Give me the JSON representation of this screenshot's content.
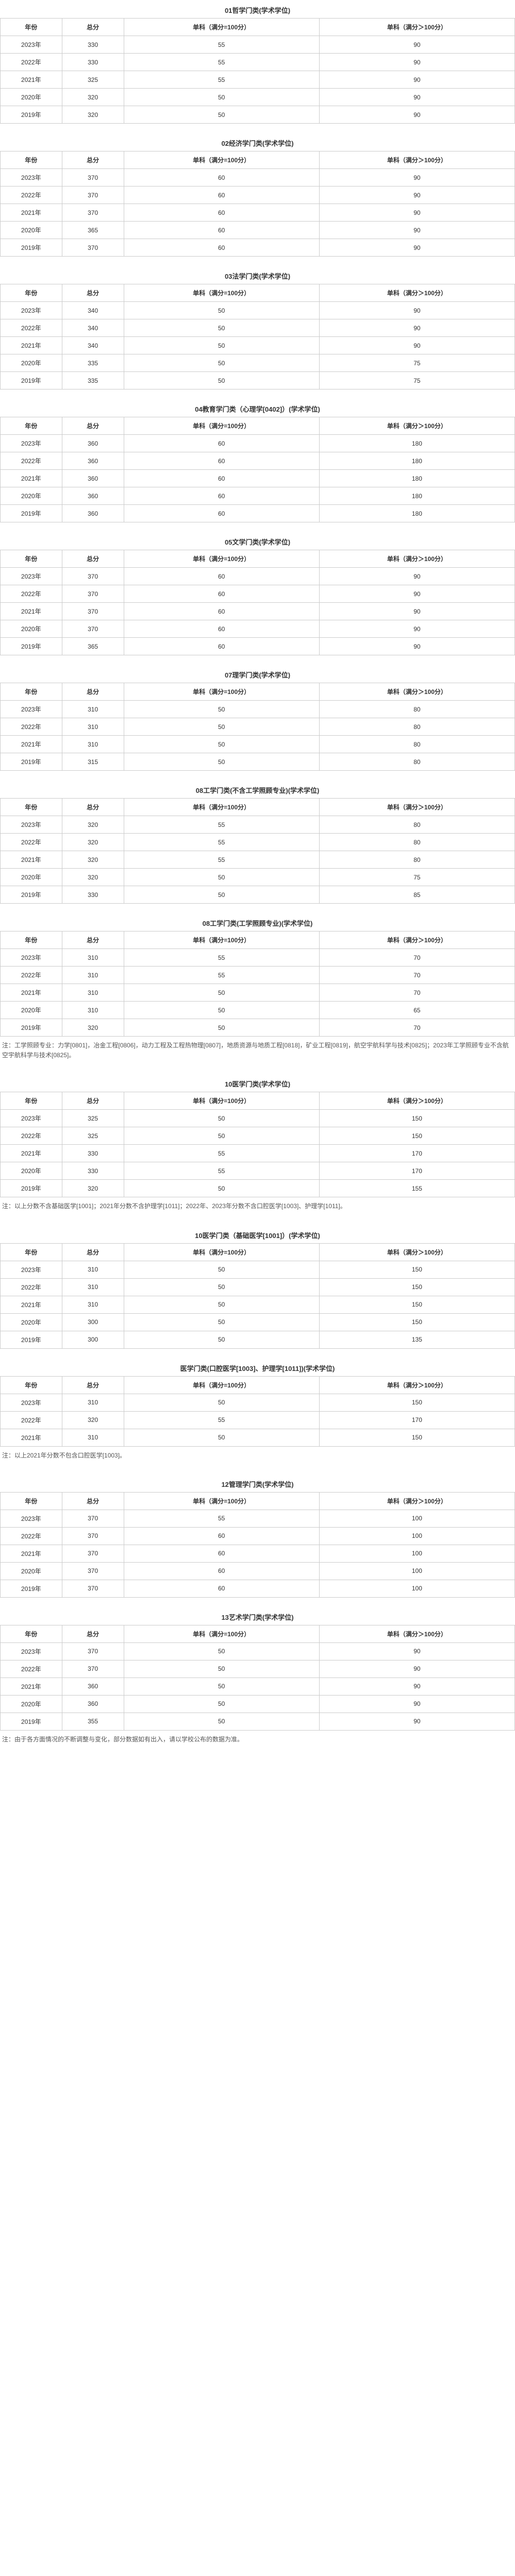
{
  "headers": {
    "year": "年份",
    "total": "总分",
    "sub1": "单科（满分=100分）",
    "sub2": "单科（满分＞100分）"
  },
  "sections": [
    {
      "title": "01哲学门类(学术学位)",
      "rows": [
        [
          "2023年",
          "330",
          "55",
          "90"
        ],
        [
          "2022年",
          "330",
          "55",
          "90"
        ],
        [
          "2021年",
          "325",
          "55",
          "90"
        ],
        [
          "2020年",
          "320",
          "50",
          "90"
        ],
        [
          "2019年",
          "320",
          "50",
          "90"
        ]
      ]
    },
    {
      "title": "02经济学门类(学术学位)",
      "rows": [
        [
          "2023年",
          "370",
          "60",
          "90"
        ],
        [
          "2022年",
          "370",
          "60",
          "90"
        ],
        [
          "2021年",
          "370",
          "60",
          "90"
        ],
        [
          "2020年",
          "365",
          "60",
          "90"
        ],
        [
          "2019年",
          "370",
          "60",
          "90"
        ]
      ]
    },
    {
      "title": "03法学门类(学术学位)",
      "rows": [
        [
          "2023年",
          "340",
          "50",
          "90"
        ],
        [
          "2022年",
          "340",
          "50",
          "90"
        ],
        [
          "2021年",
          "340",
          "50",
          "90"
        ],
        [
          "2020年",
          "335",
          "50",
          "75"
        ],
        [
          "2019年",
          "335",
          "50",
          "75"
        ]
      ]
    },
    {
      "title": "04教育学门类（心理学[0402]）(学术学位)",
      "rows": [
        [
          "2023年",
          "360",
          "60",
          "180"
        ],
        [
          "2022年",
          "360",
          "60",
          "180"
        ],
        [
          "2021年",
          "360",
          "60",
          "180"
        ],
        [
          "2020年",
          "360",
          "60",
          "180"
        ],
        [
          "2019年",
          "360",
          "60",
          "180"
        ]
      ]
    },
    {
      "title": "05文学门类(学术学位)",
      "rows": [
        [
          "2023年",
          "370",
          "60",
          "90"
        ],
        [
          "2022年",
          "370",
          "60",
          "90"
        ],
        [
          "2021年",
          "370",
          "60",
          "90"
        ],
        [
          "2020年",
          "370",
          "60",
          "90"
        ],
        [
          "2019年",
          "365",
          "60",
          "90"
        ]
      ]
    },
    {
      "title": "07理学门类(学术学位)",
      "rows": [
        [
          "2023年",
          "310",
          "50",
          "80"
        ],
        [
          "2022年",
          "310",
          "50",
          "80"
        ],
        [
          "2021年",
          "310",
          "50",
          "80"
        ],
        [
          "2019年",
          "315",
          "50",
          "80"
        ]
      ]
    },
    {
      "title": "08工学门类(不含工学照顾专业)(学术学位)",
      "rows": [
        [
          "2023年",
          "320",
          "55",
          "80"
        ],
        [
          "2022年",
          "320",
          "55",
          "80"
        ],
        [
          "2021年",
          "320",
          "55",
          "80"
        ],
        [
          "2020年",
          "320",
          "50",
          "75"
        ],
        [
          "2019年",
          "330",
          "50",
          "85"
        ]
      ]
    },
    {
      "title": "08工学门类(工学照顾专业)(学术学位)",
      "rows": [
        [
          "2023年",
          "310",
          "55",
          "70"
        ],
        [
          "2022年",
          "310",
          "55",
          "70"
        ],
        [
          "2021年",
          "310",
          "50",
          "70"
        ],
        [
          "2020年",
          "310",
          "50",
          "65"
        ],
        [
          "2019年",
          "320",
          "50",
          "70"
        ]
      ],
      "note": "注：工学照顾专业：力学[0801]，冶金工程[0806]，动力工程及工程热物理[0807]，地质资源与地质工程[0818]，矿业工程[0819]，航空宇航科学与技术[0825]；2023年工学照顾专业不含航空宇航科学与技术[0825]。"
    },
    {
      "title": "10医学门类(学术学位)",
      "rows": [
        [
          "2023年",
          "325",
          "50",
          "150"
        ],
        [
          "2022年",
          "325",
          "50",
          "150"
        ],
        [
          "2021年",
          "330",
          "55",
          "170"
        ],
        [
          "2020年",
          "330",
          "55",
          "170"
        ],
        [
          "2019年",
          "320",
          "50",
          "155"
        ]
      ],
      "note": "注：以上分数不含基础医学[1001]；2021年分数不含护理学[1011]；2022年、2023年分数不含口腔医学[1003]、护理学[1011]。"
    },
    {
      "title": "10医学门类（基础医学[1001]）(学术学位)",
      "rows": [
        [
          "2023年",
          "310",
          "50",
          "150"
        ],
        [
          "2022年",
          "310",
          "50",
          "150"
        ],
        [
          "2021年",
          "310",
          "50",
          "150"
        ],
        [
          "2020年",
          "300",
          "50",
          "150"
        ],
        [
          "2019年",
          "300",
          "50",
          "135"
        ]
      ]
    },
    {
      "title": "医学门类(口腔医学[1003]、护理学[1011])(学术学位)",
      "rows": [
        [
          "2023年",
          "310",
          "50",
          "150"
        ],
        [
          "2022年",
          "320",
          "55",
          "170"
        ],
        [
          "2021年",
          "310",
          "50",
          "150"
        ]
      ],
      "note": "注：以上2021年分数不包含口腔医学[1003]。"
    },
    {
      "title": "12管理学门类(学术学位)",
      "rows": [
        [
          "2023年",
          "370",
          "55",
          "100"
        ],
        [
          "2022年",
          "370",
          "60",
          "100"
        ],
        [
          "2021年",
          "370",
          "60",
          "100"
        ],
        [
          "2020年",
          "370",
          "60",
          "100"
        ],
        [
          "2019年",
          "370",
          "60",
          "100"
        ]
      ]
    },
    {
      "title": "13艺术学门类(学术学位)",
      "rows": [
        [
          "2023年",
          "370",
          "50",
          "90"
        ],
        [
          "2022年",
          "370",
          "50",
          "90"
        ],
        [
          "2021年",
          "360",
          "50",
          "90"
        ],
        [
          "2020年",
          "360",
          "50",
          "90"
        ],
        [
          "2019年",
          "355",
          "50",
          "90"
        ]
      ],
      "note": "注：由于各方面情况的不断调整与变化，部分数据如有出入，请以学校公布的数据为准。"
    }
  ]
}
